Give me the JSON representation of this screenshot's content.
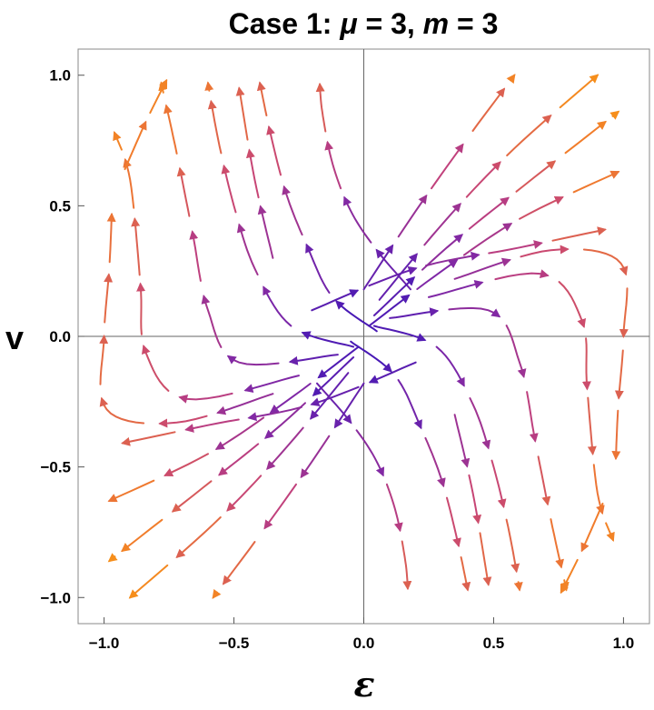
{
  "chart_data": {
    "type": "streamplot",
    "title": {
      "prefix": "Case 1: ",
      "mu_symbol": "μ",
      "mu_value": " = 3, ",
      "m_symbol": "m",
      "m_value": " = 3"
    },
    "xlabel": "ε",
    "ylabel": "v",
    "xlim": [
      -1.1,
      1.1
    ],
    "ylim": [
      -1.1,
      1.1
    ],
    "xticks": [
      -1.0,
      -0.5,
      0.0,
      0.5,
      1.0
    ],
    "yticks": [
      -1.0,
      -0.5,
      0.0,
      0.5,
      1.0
    ],
    "x_tick_labels": [
      "−1.0",
      "−0.5",
      "0.0",
      "0.5",
      "1.0"
    ],
    "y_tick_labels": [
      "−1.0",
      "−0.5",
      "0.0",
      "0.5",
      "1.0"
    ],
    "grid": false,
    "axes_through_origin": true,
    "color_scale": {
      "description": "arrow colour by speed (slow → fast)",
      "colors": [
        "#3a16b8",
        "#7b26a8",
        "#c4427a",
        "#f07a2e",
        "#f99a10"
      ]
    },
    "critical_point": [
      0.0,
      0.0
    ],
    "streamlines": [
      {
        "id": "s01",
        "points": [
          [
            0.18,
            0.18
          ],
          [
            0.05,
            0.33
          ],
          [
            -0.05,
            0.48
          ],
          [
            -0.12,
            0.66
          ],
          [
            -0.16,
            0.86
          ],
          [
            -0.17,
            0.98
          ]
        ]
      },
      {
        "id": "s02",
        "points": [
          [
            0.05,
            0.02
          ],
          [
            -0.12,
            0.15
          ],
          [
            -0.22,
            0.35
          ],
          [
            -0.3,
            0.55
          ],
          [
            -0.36,
            0.78
          ],
          [
            -0.4,
            0.97
          ]
        ]
      },
      {
        "id": "s03",
        "points": [
          [
            -0.04,
            -0.04
          ],
          [
            -0.28,
            0.04
          ],
          [
            -0.42,
            0.26
          ],
          [
            -0.5,
            0.5
          ],
          [
            -0.56,
            0.75
          ],
          [
            -0.6,
            0.97
          ]
        ]
      },
      {
        "id": "s04",
        "points": [
          [
            -0.1,
            -0.07
          ],
          [
            -0.48,
            -0.1
          ],
          [
            -0.6,
            0.1
          ],
          [
            -0.66,
            0.4
          ],
          [
            -0.72,
            0.7
          ],
          [
            -0.78,
            0.97
          ]
        ]
      },
      {
        "id": "s05",
        "points": [
          [
            -0.25,
            -0.15
          ],
          [
            -0.68,
            -0.24
          ],
          [
            -0.84,
            -0.06
          ],
          [
            -0.86,
            0.2
          ],
          [
            -0.9,
            0.6
          ],
          [
            -0.96,
            0.78
          ]
        ]
      },
      {
        "id": "s06",
        "points": [
          [
            -0.35,
            -0.22
          ],
          [
            -0.72,
            -0.33
          ],
          [
            -0.99,
            -0.28
          ],
          [
            -1.0,
            0.0
          ],
          [
            -0.98,
            0.26
          ],
          [
            -0.97,
            0.48
          ]
        ]
      },
      {
        "id": "s07",
        "points": [
          [
            0.2,
            -0.1
          ],
          [
            -0.2,
            -0.26
          ],
          [
            -0.6,
            -0.34
          ],
          [
            -0.98,
            -0.42
          ]
        ]
      },
      {
        "id": "s08",
        "points": [
          [
            -0.02,
            -0.04
          ],
          [
            -0.3,
            -0.25
          ],
          [
            -0.6,
            -0.45
          ],
          [
            -0.98,
            -0.63
          ]
        ]
      },
      {
        "id": "s09",
        "points": [
          [
            -0.04,
            -0.08
          ],
          [
            -0.32,
            -0.34
          ],
          [
            -0.62,
            -0.58
          ],
          [
            -0.98,
            -0.86
          ]
        ]
      },
      {
        "id": "s10",
        "points": [
          [
            -0.06,
            -0.14
          ],
          [
            -0.32,
            -0.45
          ],
          [
            -0.58,
            -0.72
          ],
          [
            -0.9,
            -1.0
          ]
        ]
      },
      {
        "id": "s11",
        "points": [
          [
            0.0,
            -0.18
          ],
          [
            -0.2,
            -0.48
          ],
          [
            -0.4,
            -0.76
          ],
          [
            -0.58,
            -1.0
          ]
        ]
      },
      {
        "id": "s12",
        "points": [
          [
            -0.18,
            -0.18
          ],
          [
            -0.05,
            -0.33
          ],
          [
            0.05,
            -0.48
          ],
          [
            0.12,
            -0.66
          ],
          [
            0.16,
            -0.86
          ],
          [
            0.17,
            -0.98
          ]
        ]
      },
      {
        "id": "s13",
        "points": [
          [
            -0.05,
            -0.02
          ],
          [
            0.12,
            -0.15
          ],
          [
            0.22,
            -0.35
          ],
          [
            0.3,
            -0.55
          ],
          [
            0.36,
            -0.78
          ],
          [
            0.4,
            -0.97
          ]
        ]
      },
      {
        "id": "s14",
        "points": [
          [
            0.04,
            0.04
          ],
          [
            0.28,
            -0.04
          ],
          [
            0.42,
            -0.26
          ],
          [
            0.5,
            -0.5
          ],
          [
            0.56,
            -0.75
          ],
          [
            0.6,
            -0.97
          ]
        ]
      },
      {
        "id": "s15",
        "points": [
          [
            0.1,
            0.07
          ],
          [
            0.48,
            0.1
          ],
          [
            0.6,
            -0.1
          ],
          [
            0.66,
            -0.4
          ],
          [
            0.72,
            -0.7
          ],
          [
            0.78,
            -0.97
          ]
        ]
      },
      {
        "id": "s16",
        "points": [
          [
            0.25,
            0.15
          ],
          [
            0.68,
            0.24
          ],
          [
            0.84,
            0.06
          ],
          [
            0.86,
            -0.2
          ],
          [
            0.9,
            -0.6
          ],
          [
            0.96,
            -0.78
          ]
        ]
      },
      {
        "id": "s17",
        "points": [
          [
            0.35,
            0.22
          ],
          [
            0.72,
            0.33
          ],
          [
            0.99,
            0.28
          ],
          [
            1.0,
            0.0
          ],
          [
            0.98,
            -0.26
          ],
          [
            0.97,
            -0.48
          ]
        ]
      },
      {
        "id": "s18",
        "points": [
          [
            -0.2,
            0.1
          ],
          [
            0.2,
            0.26
          ],
          [
            0.6,
            0.34
          ],
          [
            0.98,
            0.42
          ]
        ]
      },
      {
        "id": "s19",
        "points": [
          [
            0.02,
            0.04
          ],
          [
            0.3,
            0.25
          ],
          [
            0.6,
            0.45
          ],
          [
            0.98,
            0.63
          ]
        ]
      },
      {
        "id": "s20",
        "points": [
          [
            0.04,
            0.08
          ],
          [
            0.32,
            0.34
          ],
          [
            0.62,
            0.58
          ],
          [
            0.98,
            0.86
          ]
        ]
      },
      {
        "id": "s21",
        "points": [
          [
            0.06,
            0.14
          ],
          [
            0.32,
            0.45
          ],
          [
            0.58,
            0.72
          ],
          [
            0.9,
            1.0
          ]
        ]
      },
      {
        "id": "s22",
        "points": [
          [
            0.0,
            0.18
          ],
          [
            0.2,
            0.48
          ],
          [
            0.4,
            0.76
          ],
          [
            0.58,
            1.0
          ]
        ]
      },
      {
        "id": "s23",
        "points": [
          [
            -0.92,
            0.64
          ],
          [
            -0.84,
            0.82
          ],
          [
            -0.76,
            0.98
          ]
        ]
      },
      {
        "id": "s24",
        "points": [
          [
            0.92,
            -0.64
          ],
          [
            0.84,
            -0.82
          ],
          [
            0.76,
            -0.98
          ]
        ]
      },
      {
        "id": "s25",
        "points": [
          [
            -0.35,
            0.3
          ],
          [
            -0.42,
            0.6
          ],
          [
            -0.48,
            0.95
          ]
        ]
      },
      {
        "id": "s26",
        "points": [
          [
            0.35,
            -0.3
          ],
          [
            0.42,
            -0.6
          ],
          [
            0.48,
            -0.95
          ]
        ]
      }
    ]
  }
}
